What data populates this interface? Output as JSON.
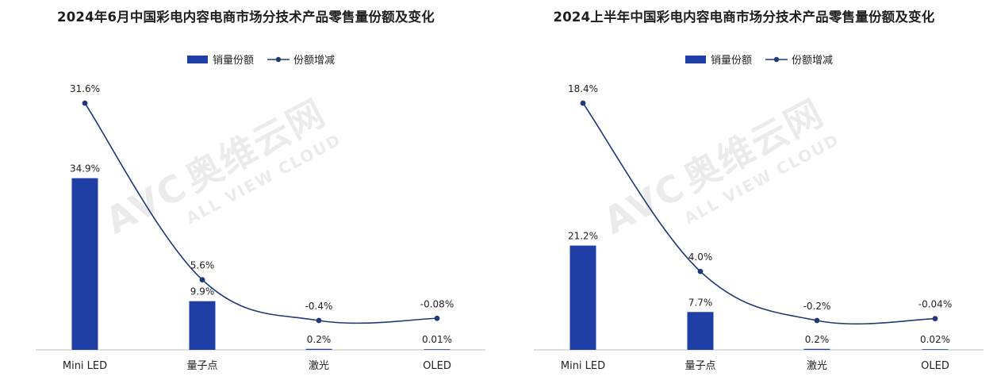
{
  "watermark": {
    "brand": "AVC",
    "cn": "奥维云网",
    "en": "ALL VIEW CLOUD"
  },
  "colors": {
    "bar": "#1f3fa6",
    "line": "#1f3a78",
    "axis": "#bfbfbf"
  },
  "chart_data": [
    {
      "type": "bar+line",
      "title": "2024年6月中国彩电内容电商市场分技术产品零售量份额及变化",
      "categories": [
        "Mini LED",
        "量子点",
        "激光",
        "OLED"
      ],
      "series": [
        {
          "name": "销量份额",
          "type": "bar",
          "values": [
            34.9,
            9.9,
            0.2,
            0.01
          ],
          "labels": [
            "34.9%",
            "9.9%",
            "0.2%",
            "0.01%"
          ]
        },
        {
          "name": "份额增减",
          "type": "line",
          "values": [
            31.6,
            5.6,
            -0.4,
            -0.08
          ],
          "labels": [
            "31.6%",
            "5.6%",
            "-0.4%",
            "-0.08%"
          ]
        }
      ],
      "legend": "top-center"
    },
    {
      "type": "bar+line",
      "title": "2024上半年中国彩电内容电商市场分技术产品零售量份额及变化",
      "categories": [
        "Mini LED",
        "量子点",
        "激光",
        "OLED"
      ],
      "series": [
        {
          "name": "销量份额",
          "type": "bar",
          "values": [
            21.2,
            7.7,
            0.2,
            0.02
          ],
          "labels": [
            "21.2%",
            "7.7%",
            "0.2%",
            "0.02%"
          ]
        },
        {
          "name": "份额增减",
          "type": "line",
          "values": [
            18.4,
            4.0,
            -0.2,
            -0.04
          ],
          "labels": [
            "18.4%",
            "4.0%",
            "-0.2%",
            "-0.04%"
          ]
        }
      ],
      "legend": "top-center"
    }
  ]
}
